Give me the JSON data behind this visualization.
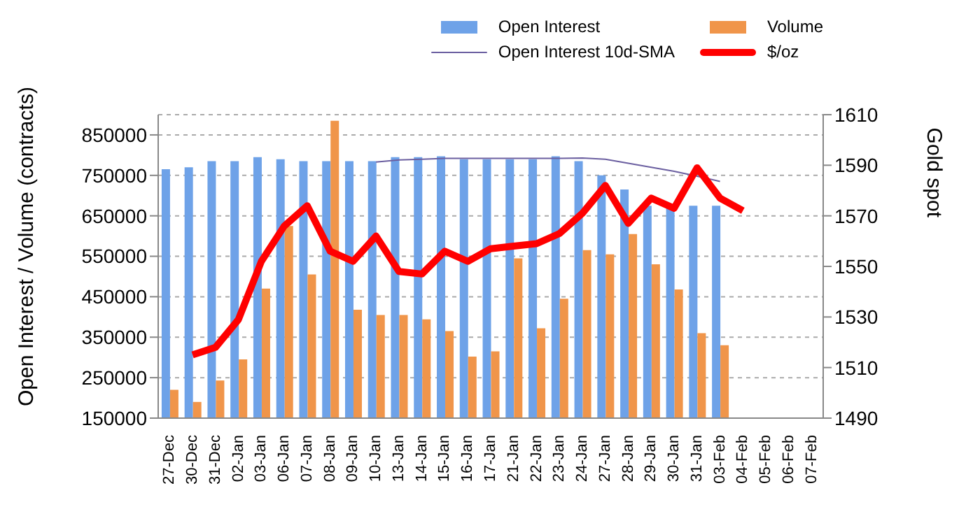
{
  "chart_data": {
    "type": "bar",
    "ylabel": "Open Interest / Volume (contracts)",
    "y2label": "Gold spot",
    "categories": [
      "27-Dec",
      "30-Dec",
      "31-Dec",
      "02-Jan",
      "03-Jan",
      "06-Jan",
      "07-Jan",
      "08-Jan",
      "09-Jan",
      "10-Jan",
      "13-Jan",
      "14-Jan",
      "15-Jan",
      "16-Jan",
      "17-Jan",
      "21-Jan",
      "22-Jan",
      "23-Jan",
      "24-Jan",
      "27-Jan",
      "28-Jan",
      "29-Jan",
      "30-Jan",
      "31-Jan",
      "03-Feb",
      "04-Feb",
      "05-Feb",
      "06-Feb",
      "07-Feb"
    ],
    "series": [
      {
        "name": "Open Interest",
        "color": "#6ea2e8",
        "values": [
          765000,
          770000,
          785000,
          785000,
          795000,
          790000,
          785000,
          785000,
          785000,
          785000,
          795000,
          795000,
          797000,
          790000,
          790000,
          790000,
          790000,
          797000,
          785000,
          750000,
          715000,
          675000,
          675000,
          675000,
          675000,
          null,
          null,
          null,
          null
        ]
      },
      {
        "name": "Volume",
        "color": "#f0954a",
        "values": [
          220000,
          190000,
          243000,
          295000,
          470000,
          625000,
          505000,
          885000,
          418000,
          405000,
          405000,
          394000,
          365000,
          302000,
          315000,
          545000,
          372000,
          445000,
          565000,
          555000,
          605000,
          530000,
          468000,
          360000,
          330000,
          null,
          null,
          null,
          null
        ]
      },
      {
        "name": "Open Interest 10d-SMA",
        "type": "line",
        "color": "#6b5fa0",
        "values": [
          null,
          null,
          null,
          null,
          null,
          null,
          null,
          null,
          null,
          783000,
          788000,
          790000,
          792000,
          792000,
          792000,
          792000,
          792000,
          792000,
          793000,
          790000,
          780000,
          770000,
          760000,
          748000,
          735000,
          null,
          null,
          null,
          null
        ]
      },
      {
        "name": "$/oz",
        "type": "line",
        "axis": "y2",
        "color": "#ff0000",
        "values": [
          null,
          1515,
          1518,
          1529,
          1552,
          1566,
          1574,
          1556,
          1552,
          1562,
          1548,
          1547,
          1556,
          1552,
          1557,
          1558,
          1559,
          1563,
          1571,
          1582,
          1567,
          1577,
          1573,
          1589,
          1577,
          1572,
          null,
          null,
          null
        ]
      }
    ],
    "ylim": [
      150000,
      900000
    ],
    "yticks": [
      150000,
      250000,
      350000,
      450000,
      550000,
      650000,
      750000,
      850000
    ],
    "y2lim": [
      1490,
      1610
    ],
    "y2ticks": [
      1490,
      1510,
      1530,
      1550,
      1570,
      1590,
      1610
    ],
    "grid": "y",
    "legend": "top right",
    "marker": "none"
  }
}
